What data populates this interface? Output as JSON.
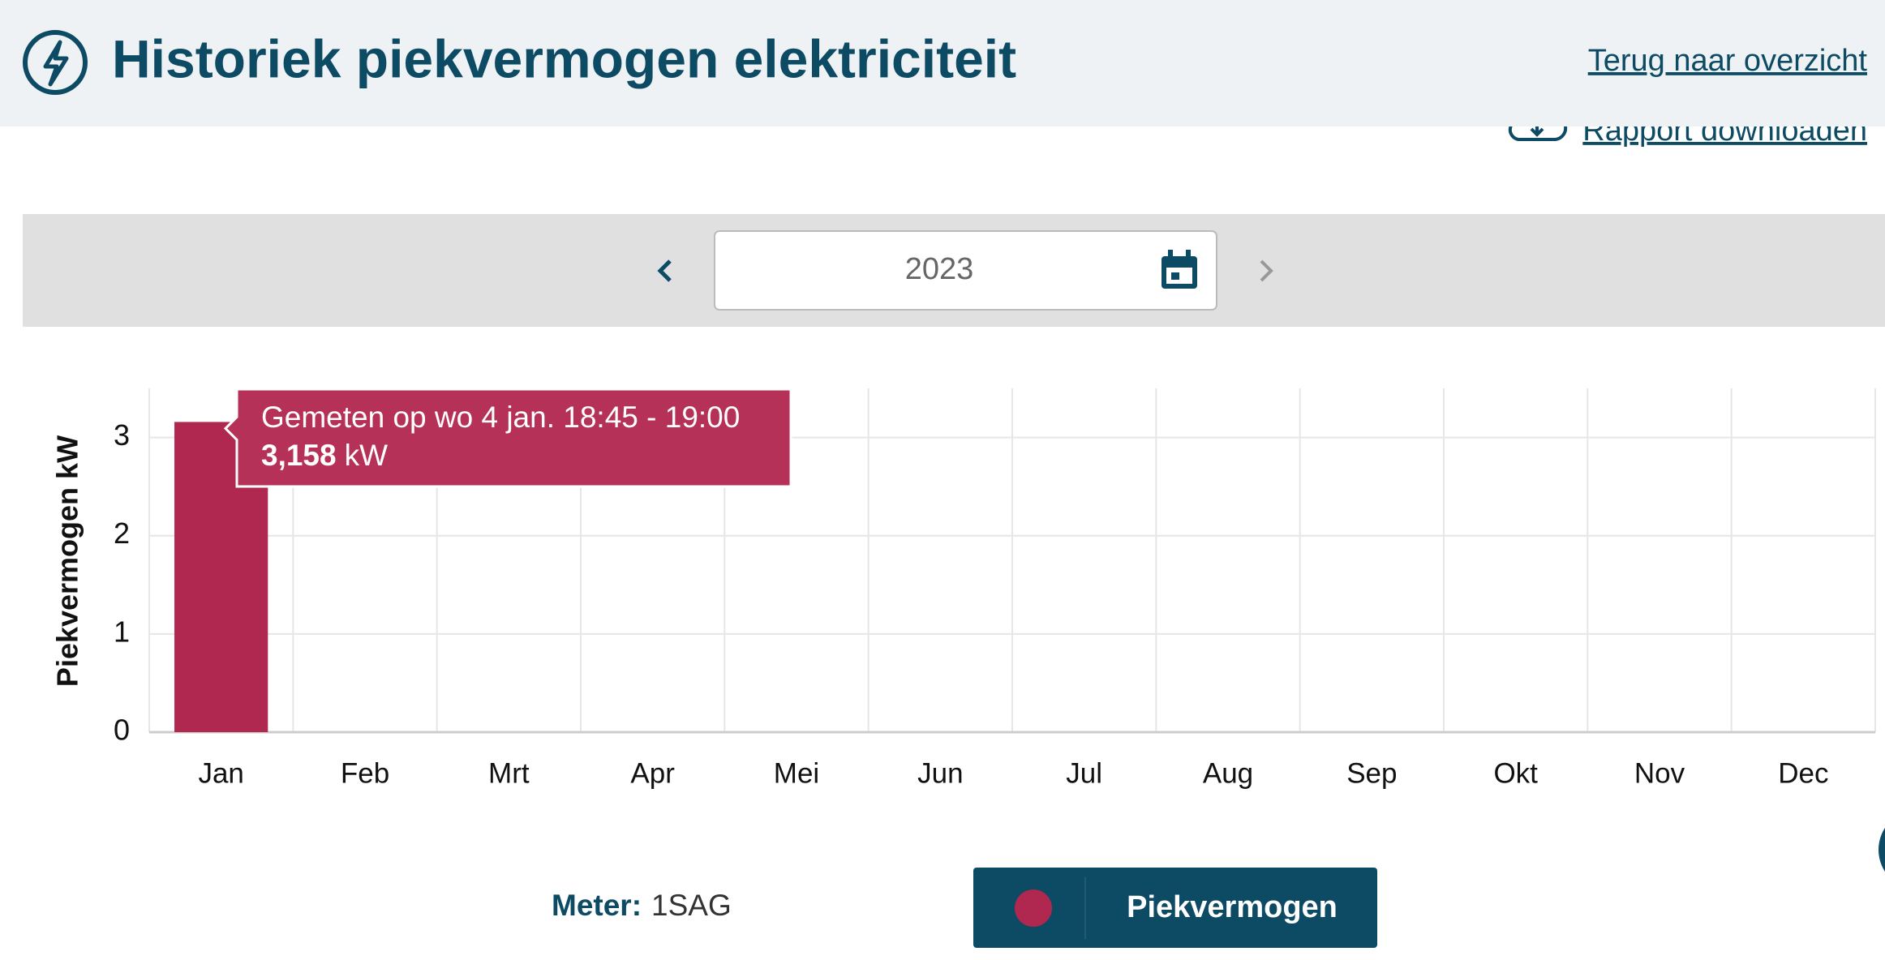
{
  "header": {
    "title": "Historiek piekvermogen elektriciteit",
    "back_link": "Terug naar overzicht",
    "download_link": "Rapport downloaden"
  },
  "period": {
    "year": "2023"
  },
  "meter": {
    "label": "Meter:",
    "id": "1SAG"
  },
  "chart_data": {
    "type": "bar",
    "y_label": "Piekvermogen kW",
    "categories": [
      "Jan",
      "Feb",
      "Mrt",
      "Apr",
      "Mei",
      "Jun",
      "Jul",
      "Aug",
      "Sep",
      "Okt",
      "Nov",
      "Dec"
    ],
    "series": [
      {
        "name": "Piekvermogen",
        "color": "#b0284f",
        "values": [
          3.158,
          null,
          null,
          null,
          null,
          null,
          null,
          null,
          null,
          null,
          null,
          null
        ],
        "value_labels": [
          "3,158",
          null,
          null,
          null,
          null,
          null,
          null,
          null,
          null,
          null,
          null,
          null
        ]
      }
    ],
    "tooltip": {
      "title": "Gemeten op wo 4 jan. 18:45 - 19:00",
      "unit": "kW"
    },
    "ylim": [
      0,
      3.5
    ],
    "yticks": [
      0,
      1,
      2,
      3
    ],
    "grid": true
  }
}
